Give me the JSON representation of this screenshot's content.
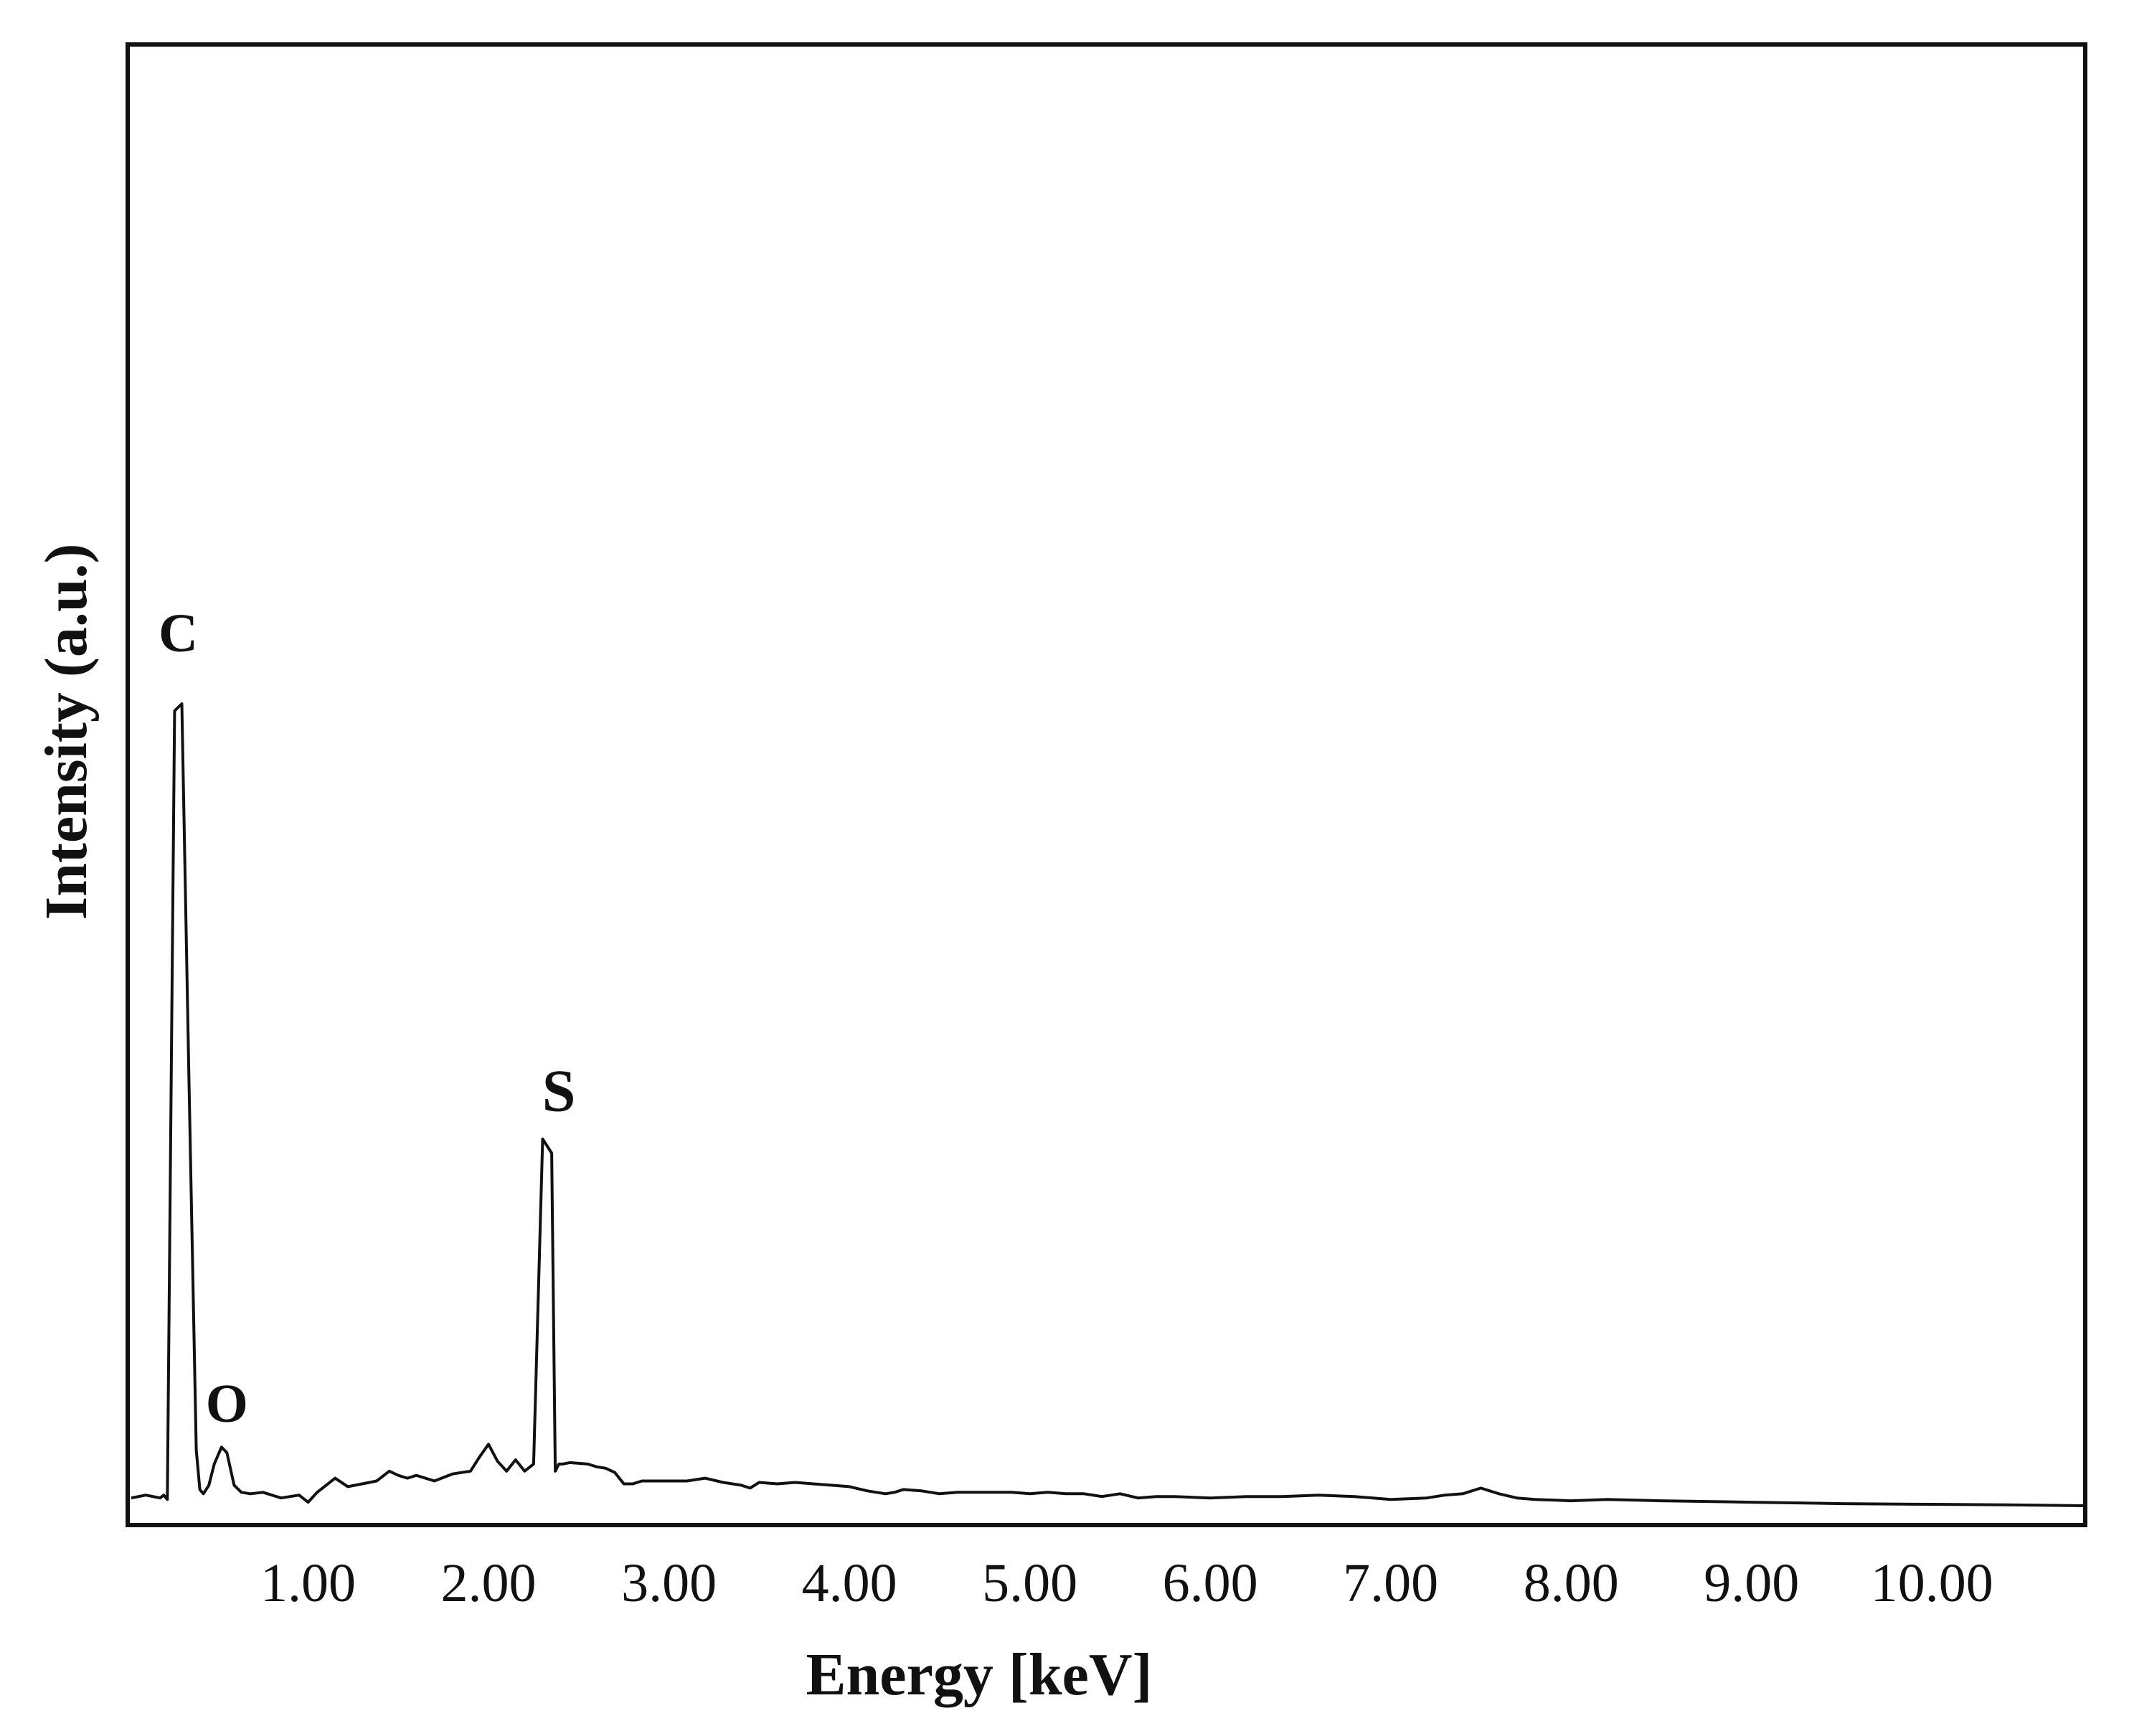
{
  "chart_data": {
    "type": "line",
    "xlabel": "Energy [keV]",
    "ylabel": "Intensity (a.u.)",
    "xlim": [
      0.0,
      10.85
    ],
    "ylim": [
      0,
      100
    ],
    "y_ticks_shown": false,
    "grid": false,
    "legend": "none",
    "x_ticks": [
      "1.00",
      "2.00",
      "3.00",
      "4.00",
      "5.00",
      "6.00",
      "7.00",
      "8.00",
      "9.00",
      "10.00"
    ],
    "x_tick_values": [
      1,
      2,
      3,
      4,
      5,
      6,
      7,
      8,
      9,
      10
    ],
    "series": [
      {
        "color": "#111111",
        "x": [
          0.02,
          0.1,
          0.18,
          0.2,
          0.22,
          0.26,
          0.3,
          0.34,
          0.38,
          0.4,
          0.42,
          0.45,
          0.48,
          0.52,
          0.55,
          0.59,
          0.63,
          0.68,
          0.75,
          0.85,
          0.95,
          1.0,
          1.05,
          1.1,
          1.15,
          1.22,
          1.3,
          1.38,
          1.45,
          1.5,
          1.55,
          1.6,
          1.7,
          1.8,
          1.9,
          1.95,
          2.0,
          2.05,
          2.1,
          2.15,
          2.2,
          2.25,
          2.3,
          2.35,
          2.37,
          2.39,
          2.41,
          2.45,
          2.55,
          2.6,
          2.65,
          2.7,
          2.75,
          2.8,
          2.85,
          2.9,
          3.0,
          3.1,
          3.2,
          3.3,
          3.4,
          3.45,
          3.5,
          3.6,
          3.7,
          3.8,
          3.9,
          4.0,
          4.1,
          4.2,
          4.25,
          4.3,
          4.4,
          4.5,
          4.6,
          4.7,
          4.8,
          4.9,
          5.0,
          5.1,
          5.2,
          5.3,
          5.4,
          5.5,
          5.6,
          5.7,
          5.8,
          6.0,
          6.2,
          6.4,
          6.6,
          6.8,
          7.0,
          7.2,
          7.3,
          7.4,
          7.5,
          7.6,
          7.7,
          7.8,
          8.0,
          8.2,
          8.5,
          9.0,
          9.5,
          10.0,
          10.5,
          10.85
        ],
        "y": [
          0.6,
          0.8,
          0.6,
          0.8,
          0.5,
          56.3,
          56.8,
          30.0,
          4.0,
          1.2,
          0.9,
          1.5,
          3.0,
          4.2,
          3.8,
          1.5,
          1.0,
          0.9,
          1.0,
          0.6,
          0.8,
          0.3,
          1.0,
          1.5,
          2.0,
          1.4,
          1.6,
          1.8,
          2.5,
          2.2,
          2.0,
          2.2,
          1.8,
          2.3,
          2.5,
          3.5,
          4.4,
          3.2,
          2.5,
          3.3,
          2.5,
          3.0,
          26.0,
          25.0,
          2.5,
          3.0,
          3.0,
          3.1,
          3.0,
          2.8,
          2.7,
          2.4,
          1.6,
          1.6,
          1.8,
          1.8,
          1.8,
          1.8,
          2.0,
          1.7,
          1.5,
          1.3,
          1.7,
          1.6,
          1.7,
          1.6,
          1.5,
          1.4,
          1.1,
          0.9,
          1.0,
          1.2,
          1.1,
          0.9,
          1.0,
          1.0,
          1.0,
          1.0,
          0.9,
          1.0,
          0.9,
          0.9,
          0.7,
          0.9,
          0.6,
          0.7,
          0.7,
          0.6,
          0.7,
          0.7,
          0.8,
          0.7,
          0.5,
          0.6,
          0.8,
          0.9,
          1.3,
          0.9,
          0.6,
          0.5,
          0.4,
          0.5,
          0.4,
          0.3,
          0.2,
          0.15,
          0.1,
          0.05
        ]
      }
    ],
    "annotations": [
      {
        "text": "C",
        "x": 0.28,
        "y": 60.5
      },
      {
        "text": "O",
        "x": 0.55,
        "y": 6.0
      },
      {
        "text": "S",
        "x": 2.39,
        "y": 28.0
      }
    ]
  }
}
